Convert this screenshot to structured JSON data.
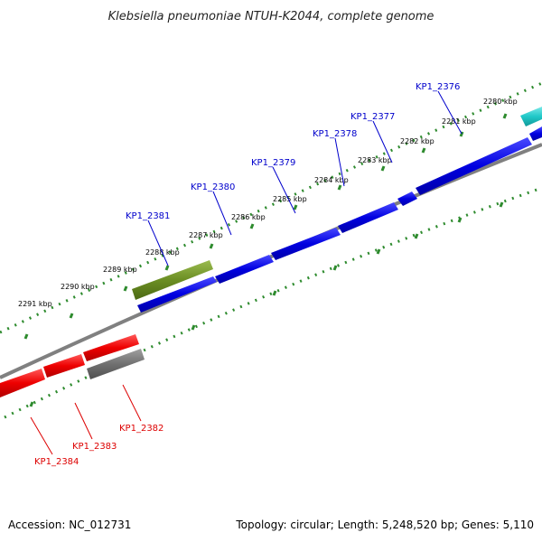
{
  "header": {
    "title": "Klebsiella pneumoniae NTUH-K2044, complete genome"
  },
  "footer": {
    "accession": "Accession: NC_012731",
    "summary": "Topology: circular; Length: 5,248,520 bp; Genes: 5,110"
  },
  "colors": {
    "plus_strand_gene": "#0000e0",
    "minus_strand_gene": "#ee0000",
    "olive_gene": "#6b8e23",
    "cyan_gene": "#20c8c8",
    "gray_gene": "#707070",
    "backbone": "#808080",
    "tick_marks": "#2e8b2e",
    "plus_label": "#0000cc",
    "minus_label": "#dd0000"
  },
  "tick_labels": [
    "2280 kbp",
    "2281 kbp",
    "2282 kbp",
    "2283 kbp",
    "2284 kbp",
    "2285 kbp",
    "2286 kbp",
    "2287 kbp",
    "2288 kbp",
    "2289 kbp",
    "2290 kbp",
    "2291 kbp"
  ],
  "genes_plus": [
    "KP1_2376",
    "KP1_2377",
    "KP1_2378",
    "KP1_2379",
    "KP1_2380",
    "KP1_2381"
  ],
  "genes_minus": [
    "KP1_2382",
    "KP1_2383",
    "KP1_2384"
  ]
}
